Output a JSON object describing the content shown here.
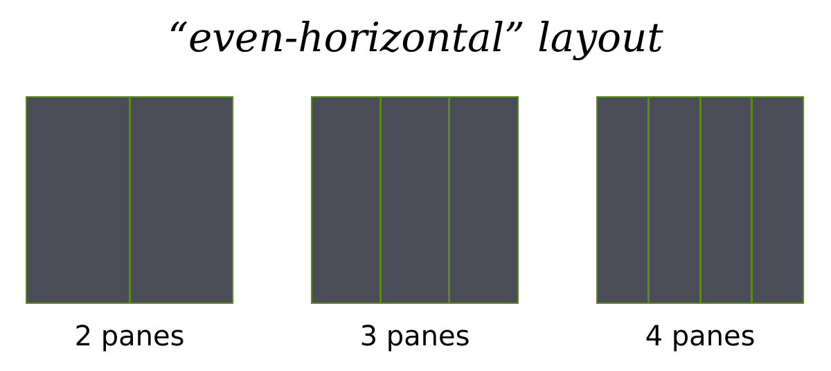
{
  "title": "“even-horizontal” layout",
  "colors": {
    "pane_fill": "#4a4d57",
    "pane_border": "#5a8a1e",
    "background": "#ffffff",
    "text": "#000000"
  },
  "layouts": [
    {
      "caption": "2 panes",
      "pane_count": 2
    },
    {
      "caption": "3 panes",
      "pane_count": 3
    },
    {
      "caption": "4 panes",
      "pane_count": 4
    }
  ]
}
